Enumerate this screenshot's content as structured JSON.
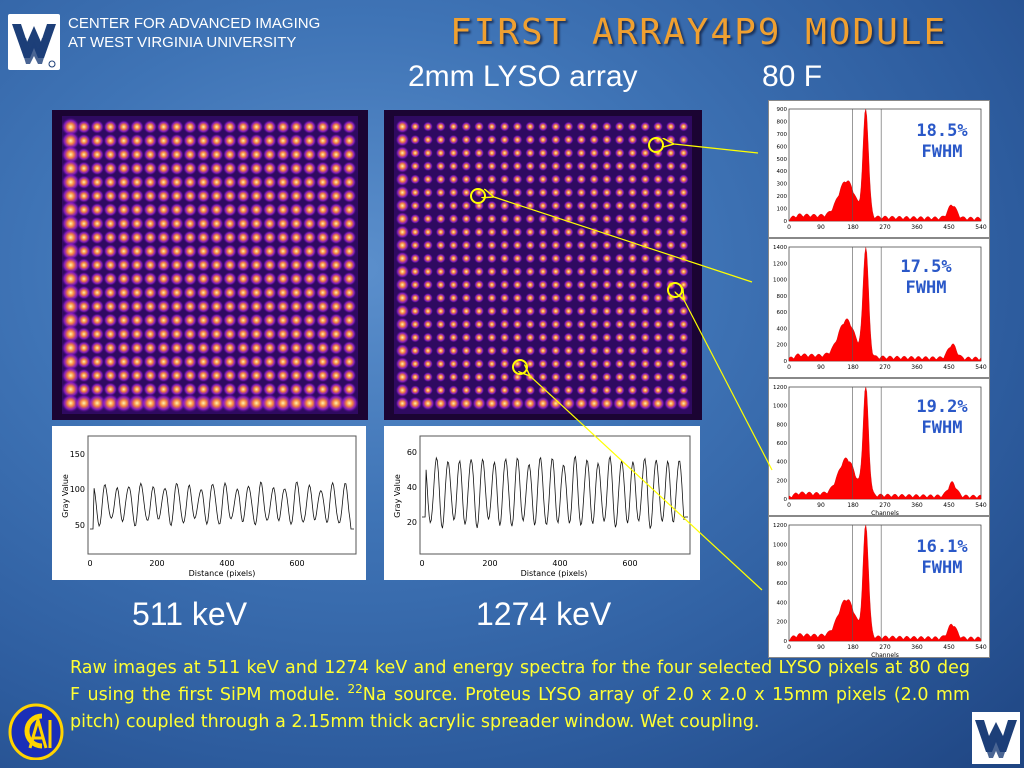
{
  "header": {
    "org_line1": "CENTER FOR ADVANCED IMAGING",
    "org_line2": "AT WEST VIRGINIA UNIVERSITY",
    "logo": "wv-logo-icon"
  },
  "title": "FIRST ARRAY4P9 MODULE",
  "subtitle": {
    "array": "2mm LYSO array",
    "temperature": "80 F"
  },
  "energies": {
    "left": "511 keV",
    "right": "1274 keV"
  },
  "profiles": [
    {
      "xlabel": "Distance (pixels)",
      "ylabel": "Gray Value",
      "xticks": [
        "0",
        "200",
        "400",
        "600"
      ],
      "yticks": [
        "150",
        "100",
        "50"
      ]
    },
    {
      "xlabel": "Distance (pixels)",
      "ylabel": "Gray Value",
      "xticks": [
        "0",
        "200",
        "400",
        "600"
      ],
      "yticks": [
        "60",
        "40",
        "20"
      ]
    }
  ],
  "spectra": [
    {
      "fwhm": "18.5%",
      "fwhm_label": "FWHM",
      "xticks": [
        "0",
        "90",
        "180",
        "270",
        "360",
        "450",
        "540"
      ],
      "yticks": [
        "900",
        "800",
        "700",
        "600",
        "500",
        "400",
        "300",
        "200",
        "100",
        "0"
      ],
      "xlabel": ""
    },
    {
      "fwhm": "17.5%",
      "fwhm_label": "FWHM",
      "xticks": [
        "0",
        "90",
        "180",
        "270",
        "360",
        "450",
        "540"
      ],
      "yticks": [
        "1400",
        "1200",
        "1000",
        "800",
        "600",
        "400",
        "200",
        "0"
      ],
      "xlabel": ""
    },
    {
      "fwhm": "19.2%",
      "fwhm_label": "FWHM",
      "xticks": [
        "0",
        "90",
        "180",
        "270",
        "360",
        "450",
        "540"
      ],
      "yticks": [
        "1200",
        "1000",
        "800",
        "600",
        "400",
        "200",
        "0"
      ],
      "xlabel": "Channels"
    },
    {
      "fwhm": "16.1%",
      "fwhm_label": "FWHM",
      "xticks": [
        "0",
        "90",
        "180",
        "270",
        "360",
        "450",
        "540"
      ],
      "yticks": [
        "1200",
        "1000",
        "800",
        "600",
        "400",
        "200",
        "0"
      ],
      "xlabel": "Channels"
    }
  ],
  "caption": {
    "part1": "Raw images at 511 keV and 1274 keV and energy spectra for the four selected LYSO pixels at 80 deg F using the first SiPM module. ",
    "isotope_mass": "22",
    "part2": "Na source. Proteus LYSO array of 2.0 x 2.0 x 15mm pixels (2.0 mm pitch) coupled through a 2.15mm thick acrylic spreader window. Wet coupling."
  },
  "footer": {
    "left_logo": "cai-logo-icon",
    "right_logo": "wv-logo-icon"
  },
  "colors": {
    "title": "#f0a030",
    "caption": "#ffff33",
    "fwhm": "#2a58c8",
    "spectrum_fill": "#ff0000",
    "marker": "#ffff00"
  }
}
